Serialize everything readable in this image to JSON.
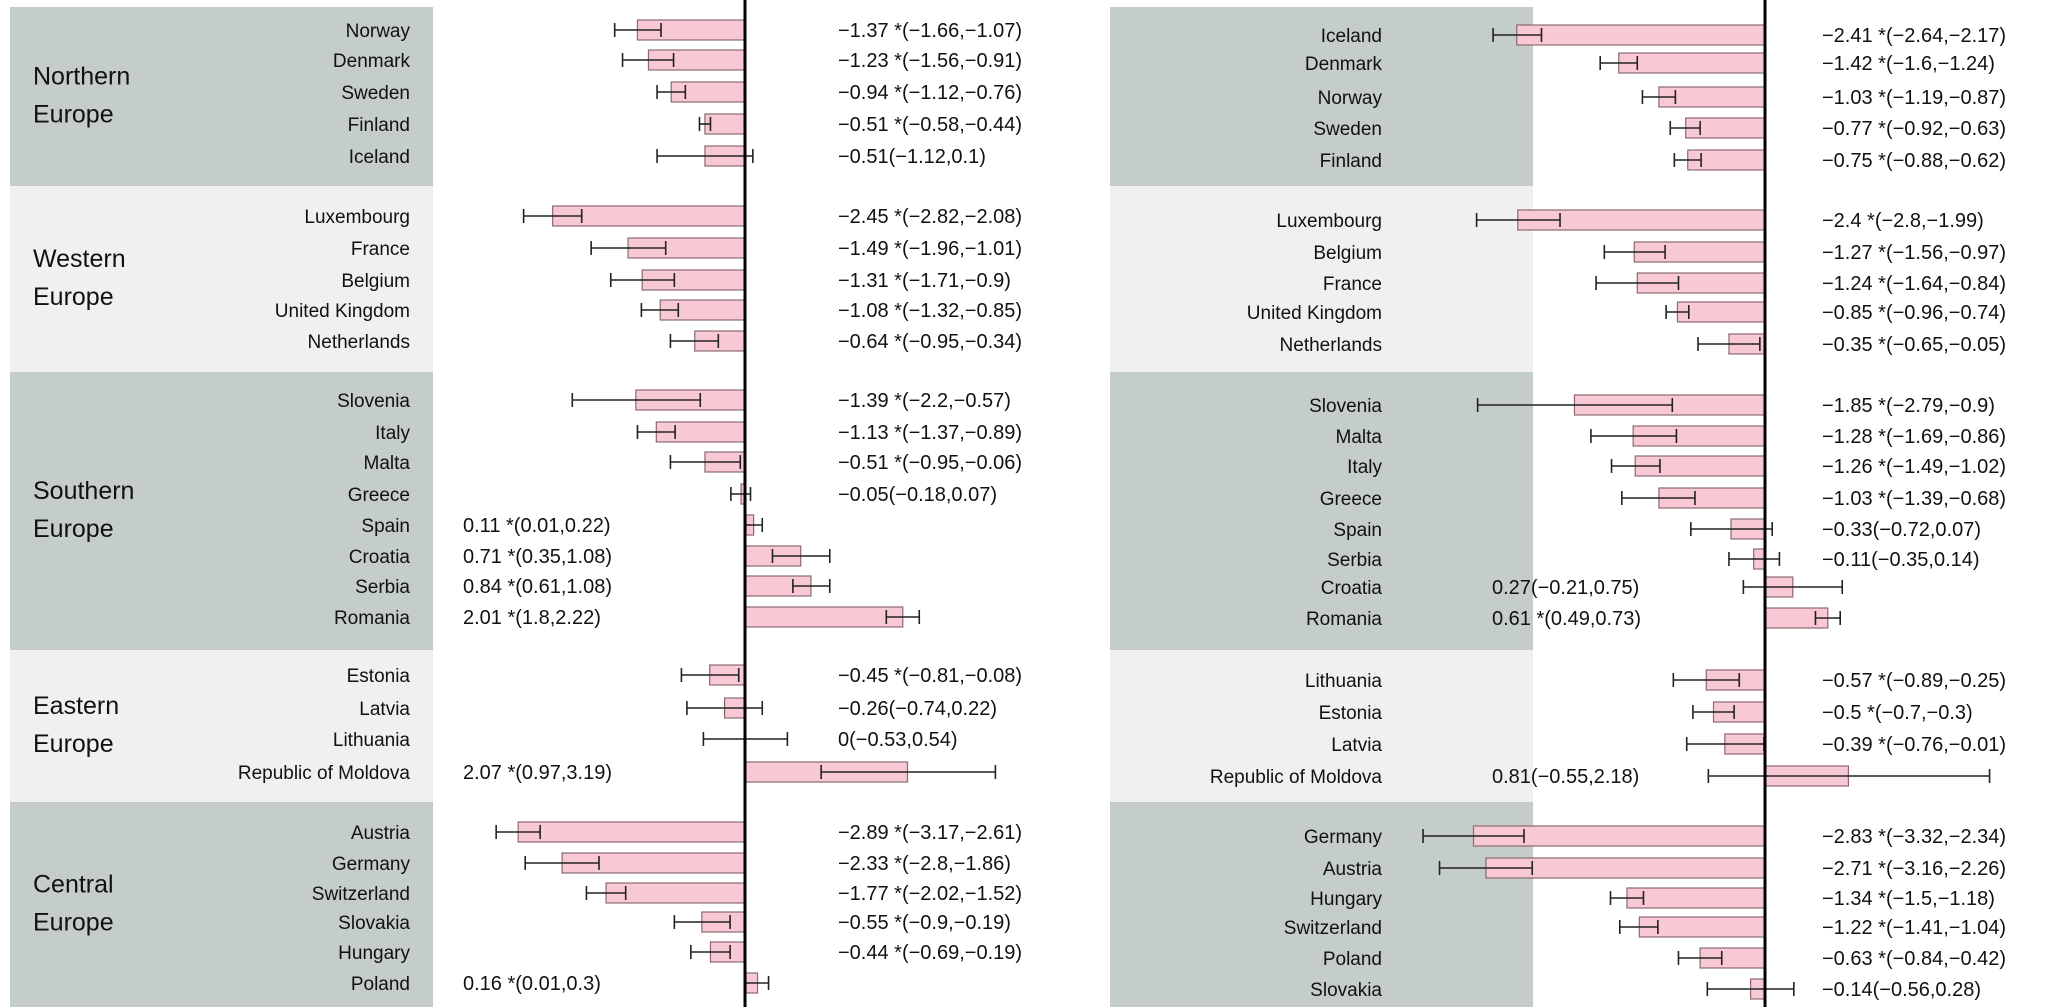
{
  "chart_data": [
    {
      "type": "bar",
      "orientation": "horizontal",
      "error_bars": true,
      "significance_marker": "*",
      "value_label_format": "estimate (lower,upper)",
      "colors": {
        "bar_fill": "#f8c8d4",
        "bar_stroke": "#8a6a70",
        "band_dark": "#c5cdcb",
        "band_light": "#f0f0f0",
        "zero_line": "#000000"
      },
      "groups": [
        {
          "label": "Northern Europe",
          "countries": [
            {
              "name": "Norway",
              "value": -1.37,
              "ci": [
                -1.66,
                -1.07
              ],
              "sig": true
            },
            {
              "name": "Denmark",
              "value": -1.23,
              "ci": [
                -1.56,
                -0.91
              ],
              "sig": true
            },
            {
              "name": "Sweden",
              "value": -0.94,
              "ci": [
                -1.12,
                -0.76
              ],
              "sig": true
            },
            {
              "name": "Finland",
              "value": -0.51,
              "ci": [
                -0.58,
                -0.44
              ],
              "sig": true
            },
            {
              "name": "Iceland",
              "value": -0.51,
              "ci": [
                -1.12,
                0.1
              ],
              "sig": false
            }
          ]
        },
        {
          "label": "Western Europe",
          "countries": [
            {
              "name": "Luxembourg",
              "value": -2.45,
              "ci": [
                -2.82,
                -2.08
              ],
              "sig": true
            },
            {
              "name": "France",
              "value": -1.49,
              "ci": [
                -1.96,
                -1.01
              ],
              "sig": true
            },
            {
              "name": "Belgium",
              "value": -1.31,
              "ci": [
                -1.71,
                -0.9
              ],
              "sig": true
            },
            {
              "name": "United Kingdom",
              "value": -1.08,
              "ci": [
                -1.32,
                -0.85
              ],
              "sig": true
            },
            {
              "name": "Netherlands",
              "value": -0.64,
              "ci": [
                -0.95,
                -0.34
              ],
              "sig": true
            }
          ]
        },
        {
          "label": "Southern Europe",
          "countries": [
            {
              "name": "Slovenia",
              "value": -1.39,
              "ci": [
                -2.2,
                -0.57
              ],
              "sig": true
            },
            {
              "name": "Italy",
              "value": -1.13,
              "ci": [
                -1.37,
                -0.89
              ],
              "sig": true
            },
            {
              "name": "Malta",
              "value": -0.51,
              "ci": [
                -0.95,
                -0.06
              ],
              "sig": true
            },
            {
              "name": "Greece",
              "value": -0.05,
              "ci": [
                -0.18,
                0.07
              ],
              "sig": false
            },
            {
              "name": "Spain",
              "value": 0.11,
              "ci": [
                0.01,
                0.22
              ],
              "sig": true
            },
            {
              "name": "Croatia",
              "value": 0.71,
              "ci": [
                0.35,
                1.08
              ],
              "sig": true
            },
            {
              "name": "Serbia",
              "value": 0.84,
              "ci": [
                0.61,
                1.08
              ],
              "sig": true
            },
            {
              "name": "Romania",
              "value": 2.01,
              "ci": [
                1.8,
                2.22
              ],
              "sig": true
            }
          ]
        },
        {
          "label": "Eastern Europe",
          "countries": [
            {
              "name": "Estonia",
              "value": -0.45,
              "ci": [
                -0.81,
                -0.08
              ],
              "sig": true
            },
            {
              "name": "Latvia",
              "value": -0.26,
              "ci": [
                -0.74,
                0.22
              ],
              "sig": false
            },
            {
              "name": "Lithuania",
              "value": 0,
              "ci": [
                -0.53,
                0.54
              ],
              "sig": false
            },
            {
              "name": "Republic of Moldova",
              "value": 2.07,
              "ci": [
                0.97,
                3.19
              ],
              "sig": true
            }
          ]
        },
        {
          "label": "Central Europe",
          "countries": [
            {
              "name": "Austria",
              "value": -2.89,
              "ci": [
                -3.17,
                -2.61
              ],
              "sig": true
            },
            {
              "name": "Germany",
              "value": -2.33,
              "ci": [
                -2.8,
                -1.86
              ],
              "sig": true
            },
            {
              "name": "Switzerland",
              "value": -1.77,
              "ci": [
                -2.02,
                -1.52
              ],
              "sig": true
            },
            {
              "name": "Slovakia",
              "value": -0.55,
              "ci": [
                -0.9,
                -0.19
              ],
              "sig": true
            },
            {
              "name": "Hungary",
              "value": -0.44,
              "ci": [
                -0.69,
                -0.19
              ],
              "sig": true
            },
            {
              "name": "Poland",
              "value": 0.16,
              "ci": [
                0.01,
                0.3
              ],
              "sig": true
            }
          ]
        }
      ]
    },
    {
      "type": "bar",
      "orientation": "horizontal",
      "error_bars": true,
      "significance_marker": "*",
      "value_label_format": "estimate (lower,upper)",
      "colors": {
        "bar_fill": "#f8c8d4",
        "bar_stroke": "#8a6a70",
        "band_dark": "#c5cdcb",
        "band_light": "#f0f0f0",
        "zero_line": "#000000"
      },
      "groups": [
        {
          "label": "",
          "countries": [
            {
              "name": "Iceland",
              "value": -2.41,
              "ci": [
                -2.64,
                -2.17
              ],
              "sig": true
            },
            {
              "name": "Denmark",
              "value": -1.42,
              "ci": [
                -1.6,
                -1.24
              ],
              "sig": true
            },
            {
              "name": "Norway",
              "value": -1.03,
              "ci": [
                -1.19,
                -0.87
              ],
              "sig": true
            },
            {
              "name": "Sweden",
              "value": -0.77,
              "ci": [
                -0.92,
                -0.63
              ],
              "sig": true
            },
            {
              "name": "Finland",
              "value": -0.75,
              "ci": [
                -0.88,
                -0.62
              ],
              "sig": true
            }
          ]
        },
        {
          "label": "",
          "countries": [
            {
              "name": "Luxembourg",
              "value": -2.4,
              "ci": [
                -2.8,
                -1.99
              ],
              "sig": true
            },
            {
              "name": "Belgium",
              "value": -1.27,
              "ci": [
                -1.56,
                -0.97
              ],
              "sig": true
            },
            {
              "name": "France",
              "value": -1.24,
              "ci": [
                -1.64,
                -0.84
              ],
              "sig": true
            },
            {
              "name": "United Kingdom",
              "value": -0.85,
              "ci": [
                -0.96,
                -0.74
              ],
              "sig": true
            },
            {
              "name": "Netherlands",
              "value": -0.35,
              "ci": [
                -0.65,
                -0.05
              ],
              "sig": true
            }
          ]
        },
        {
          "label": "",
          "countries": [
            {
              "name": "Slovenia",
              "value": -1.85,
              "ci": [
                -2.79,
                -0.9
              ],
              "sig": true
            },
            {
              "name": "Malta",
              "value": -1.28,
              "ci": [
                -1.69,
                -0.86
              ],
              "sig": true
            },
            {
              "name": "Italy",
              "value": -1.26,
              "ci": [
                -1.49,
                -1.02
              ],
              "sig": true
            },
            {
              "name": "Greece",
              "value": -1.03,
              "ci": [
                -1.39,
                -0.68
              ],
              "sig": true
            },
            {
              "name": "Spain",
              "value": -0.33,
              "ci": [
                -0.72,
                0.07
              ],
              "sig": false
            },
            {
              "name": "Serbia",
              "value": -0.11,
              "ci": [
                -0.35,
                0.14
              ],
              "sig": false
            },
            {
              "name": "Croatia",
              "value": 0.27,
              "ci": [
                -0.21,
                0.75
              ],
              "sig": false
            },
            {
              "name": "Romania",
              "value": 0.61,
              "ci": [
                0.49,
                0.73
              ],
              "sig": true
            }
          ]
        },
        {
          "label": "",
          "countries": [
            {
              "name": "Lithuania",
              "value": -0.57,
              "ci": [
                -0.89,
                -0.25
              ],
              "sig": true
            },
            {
              "name": "Estonia",
              "value": -0.5,
              "ci": [
                -0.7,
                -0.3
              ],
              "sig": true
            },
            {
              "name": "Latvia",
              "value": -0.39,
              "ci": [
                -0.76,
                -0.01
              ],
              "sig": true
            },
            {
              "name": "Republic of Moldova",
              "value": 0.81,
              "ci": [
                -0.55,
                2.18
              ],
              "sig": false
            }
          ]
        },
        {
          "label": "",
          "countries": [
            {
              "name": "Germany",
              "value": -2.83,
              "ci": [
                -3.32,
                -2.34
              ],
              "sig": true
            },
            {
              "name": "Austria",
              "value": -2.71,
              "ci": [
                -3.16,
                -2.26
              ],
              "sig": true
            },
            {
              "name": "Hungary",
              "value": -1.34,
              "ci": [
                -1.5,
                -1.18
              ],
              "sig": true
            },
            {
              "name": "Switzerland",
              "value": -1.22,
              "ci": [
                -1.41,
                -1.04
              ],
              "sig": true
            },
            {
              "name": "Poland",
              "value": -0.63,
              "ci": [
                -0.84,
                -0.42
              ],
              "sig": true
            },
            {
              "name": "Slovakia",
              "value": -0.14,
              "ci": [
                -0.56,
                0.28
              ],
              "sig": false
            }
          ]
        }
      ]
    }
  ]
}
